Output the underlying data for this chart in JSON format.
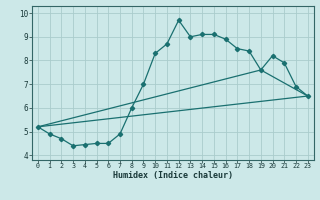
{
  "title": "",
  "xlabel": "Humidex (Indice chaleur)",
  "bg_color": "#cce8e8",
  "grid_color": "#aacccc",
  "line_color": "#1a7070",
  "xlim": [
    -0.5,
    23.5
  ],
  "ylim": [
    3.8,
    10.3
  ],
  "xticks": [
    0,
    1,
    2,
    3,
    4,
    5,
    6,
    7,
    8,
    9,
    10,
    11,
    12,
    13,
    14,
    15,
    16,
    17,
    18,
    19,
    20,
    21,
    22,
    23
  ],
  "yticks": [
    4,
    5,
    6,
    7,
    8,
    9,
    10
  ],
  "line1_x": [
    0,
    1,
    2,
    3,
    4,
    5,
    6,
    7,
    8,
    9,
    10,
    11,
    12,
    13,
    14,
    15,
    16,
    17,
    18,
    19,
    20,
    21,
    22,
    23
  ],
  "line1_y": [
    5.2,
    4.9,
    4.7,
    4.4,
    4.45,
    4.5,
    4.5,
    4.9,
    6.0,
    7.0,
    8.3,
    8.7,
    9.7,
    9.0,
    9.1,
    9.1,
    8.9,
    8.5,
    8.4,
    7.6,
    8.2,
    7.9,
    6.9,
    6.5
  ],
  "line2_x": [
    0,
    23
  ],
  "line2_y": [
    5.2,
    6.5
  ],
  "line3_x": [
    0,
    19,
    23
  ],
  "line3_y": [
    5.2,
    7.6,
    6.5
  ]
}
